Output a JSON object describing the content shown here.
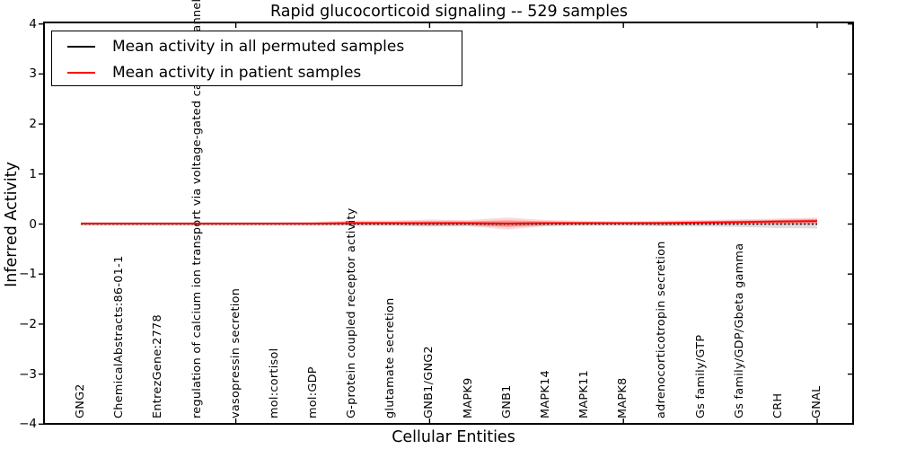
{
  "title": "Rapid glucocorticoid signaling -- 529 samples",
  "axes": {
    "xlabel": "Cellular Entities",
    "ylabel": "Inferred Activity"
  },
  "legend": {
    "entries": [
      {
        "label": "Mean activity in all permuted samples",
        "color": "#000000"
      },
      {
        "label": "Mean activity in patient samples",
        "color": "#ff0000"
      }
    ]
  },
  "chart_data": {
    "type": "line",
    "title": "Rapid glucocorticoid signaling -- 529 samples",
    "xlabel": "Cellular Entities",
    "ylabel": "Inferred Activity",
    "ylim": [
      -4,
      4
    ],
    "yticks": [
      -4,
      -3,
      -2,
      -1,
      0,
      1,
      2,
      3,
      4
    ],
    "grid": false,
    "legend_position": "upper left",
    "categories": [
      "GNG2",
      "ChemicalAbstracts:86-01-1",
      "EntrezGene:2778",
      "regulation of calcium ion transport via voltage-gated calcium channel",
      "vasopressin secretion",
      "mol:cortisol",
      "mol:GDP",
      "G-protein coupled receptor activity",
      "glutamate secretion",
      "GNB1/GNG2",
      "MAPK9",
      "GNB1",
      "MAPK14",
      "MAPK11",
      "MAPK8",
      "adrenocorticotropin secretion",
      "Gs family/GTP",
      "Gs family/GDP/Gbeta gamma",
      "CRH",
      "GNAL"
    ],
    "series": [
      {
        "name": "Mean activity in all permuted samples",
        "color": "#000000",
        "line_style": "dashed",
        "values": [
          0.0,
          0.0,
          0.0,
          0.0,
          0.0,
          0.0,
          0.0,
          0.0,
          0.0,
          0.0,
          0.0,
          0.0,
          0.0,
          0.0,
          0.0,
          0.0,
          0.0,
          0.0,
          0.0,
          0.0
        ],
        "std": [
          0.03,
          0.03,
          0.03,
          0.03,
          0.03,
          0.03,
          0.03,
          0.03,
          0.035,
          0.04,
          0.04,
          0.05,
          0.04,
          0.035,
          0.035,
          0.045,
          0.05,
          0.06,
          0.08,
          0.09
        ]
      },
      {
        "name": "Mean activity in patient samples",
        "color": "#ff0000",
        "line_style": "solid",
        "values": [
          0.01,
          0.01,
          0.01,
          0.01,
          0.01,
          0.01,
          0.01,
          0.02,
          0.02,
          0.02,
          0.02,
          0.01,
          0.02,
          0.02,
          0.02,
          0.02,
          0.03,
          0.04,
          0.05,
          0.06
        ],
        "std": [
          0.03,
          0.03,
          0.03,
          0.03,
          0.03,
          0.03,
          0.035,
          0.05,
          0.05,
          0.07,
          0.06,
          0.12,
          0.06,
          0.045,
          0.04,
          0.05,
          0.05,
          0.055,
          0.06,
          0.07
        ]
      }
    ]
  }
}
